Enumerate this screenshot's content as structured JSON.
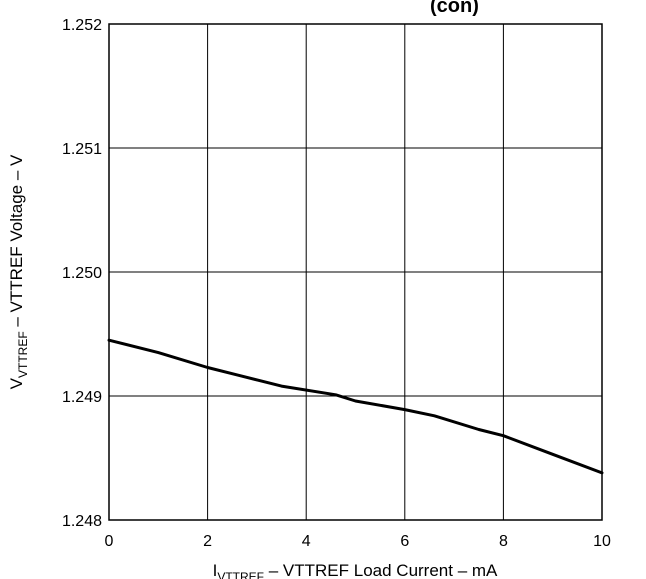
{
  "partial_top_text": "(con)",
  "chart_data": {
    "type": "line",
    "title": "",
    "xlabel": {
      "main": "I",
      "sub": "VTTREF",
      "rest": " – VTTREF Load Current – mA"
    },
    "ylabel": {
      "main": "V",
      "sub": "VTTREF",
      "rest": " – VTTREF Voltage – V"
    },
    "xlim": [
      0,
      10
    ],
    "ylim": [
      1.248,
      1.252
    ],
    "x_ticks": [
      "0",
      "2",
      "4",
      "6",
      "8",
      "10"
    ],
    "y_ticks": [
      "1.248",
      "1.249",
      "1.250",
      "1.251",
      "1.252"
    ],
    "grid": true,
    "series": [
      {
        "x": [
          0,
          1,
          2,
          2.6,
          3.5,
          4.6,
          5,
          6,
          6.6,
          7.5,
          8,
          9,
          10
        ],
        "y": [
          1.24945,
          1.24935,
          1.24923,
          1.24917,
          1.24908,
          1.24901,
          1.24896,
          1.24889,
          1.24884,
          1.24873,
          1.24868,
          1.24853,
          1.24838
        ]
      }
    ]
  }
}
